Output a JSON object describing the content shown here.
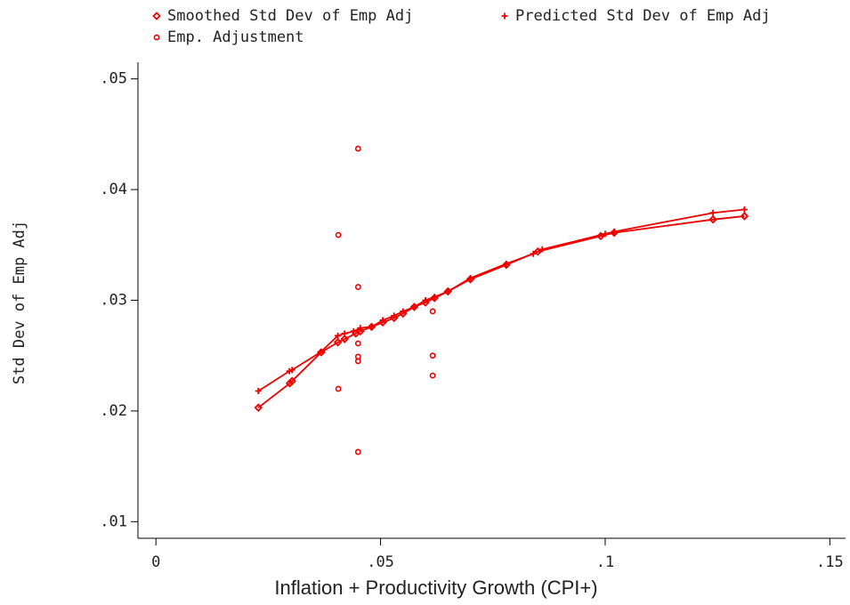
{
  "chart_data": {
    "type": "scatter",
    "x_label": "Inflation + Productivity Growth (CPI+)",
    "y_label": "Std Dev of Emp Adj",
    "xlim": [
      -0.004,
      0.1535
    ],
    "ylim": [
      0.0085,
      0.0515
    ],
    "xticks": [
      0,
      {
        "value": 0.05,
        "label": ".05"
      },
      {
        "value": 0.1,
        "label": ".1"
      },
      {
        "value": 0.15,
        "label": ".15"
      }
    ],
    "yticks": [
      {
        "value": 0.01,
        "label": ".01"
      },
      {
        "value": 0.02,
        "label": ".02"
      },
      {
        "value": 0.03,
        "label": ".03"
      },
      {
        "value": 0.04,
        "label": ".04"
      },
      {
        "value": 0.05,
        "label": ".05"
      }
    ],
    "series": [
      {
        "name": "Smoothed Std Dev of Emp Adj",
        "color": "#ee0000",
        "marker": "diamond",
        "line": true,
        "x": [
          0.0228,
          0.0298,
          0.0303,
          0.0368,
          0.0405,
          0.042,
          0.0445,
          0.0455,
          0.048,
          0.0505,
          0.053,
          0.055,
          0.0575,
          0.06,
          0.062,
          0.065,
          0.07,
          0.078,
          0.085,
          0.099,
          0.102,
          0.124,
          0.131
        ],
        "values": [
          0.0203,
          0.0225,
          0.0227,
          0.0253,
          0.0262,
          0.0265,
          0.027,
          0.0272,
          0.0276,
          0.028,
          0.0284,
          0.0288,
          0.0294,
          0.0298,
          0.0302,
          0.0308,
          0.0319,
          0.0332,
          0.0344,
          0.0358,
          0.0361,
          0.0373,
          0.0376
        ]
      },
      {
        "name": "Predicted Std Dev of Emp Adj",
        "color": "#ee0000",
        "marker": "plus",
        "line": true,
        "x": [
          0.0228,
          0.0297,
          0.0303,
          0.0366,
          0.0405,
          0.042,
          0.044,
          0.0455,
          0.048,
          0.0505,
          0.053,
          0.055,
          0.0575,
          0.06,
          0.062,
          0.065,
          0.07,
          0.078,
          0.084,
          0.086,
          0.1,
          0.102,
          0.124,
          0.131
        ],
        "values": [
          0.0218,
          0.0236,
          0.0237,
          0.0253,
          0.0268,
          0.027,
          0.0272,
          0.0275,
          0.0276,
          0.0282,
          0.0286,
          0.029,
          0.0294,
          0.03,
          0.0303,
          0.0308,
          0.032,
          0.0333,
          0.0342,
          0.0346,
          0.036,
          0.0362,
          0.0379,
          0.0382
        ]
      },
      {
        "name": "Emp. Adjustment",
        "color": "#ee0000",
        "marker": "circle",
        "line": false,
        "x": [
          0.0406,
          0.0406,
          0.045,
          0.045,
          0.045,
          0.045,
          0.045,
          0.045,
          0.0616,
          0.0616,
          0.0616
        ],
        "values": [
          0.0359,
          0.022,
          0.0437,
          0.0312,
          0.0261,
          0.0249,
          0.0245,
          0.0163,
          0.029,
          0.025,
          0.0232
        ]
      }
    ]
  }
}
